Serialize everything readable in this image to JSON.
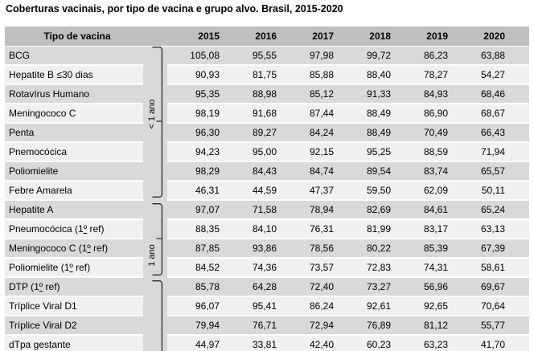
{
  "title": "Coberturas vacinais, por tipo de vacina e grupo alvo. Brasil, 2015-2020",
  "colors": {
    "header-bg": "#bfbfbf",
    "row-dark": "#d9d9d9",
    "row-light": "#f0f0f0",
    "strip-bg": "#d9d9d9",
    "bracket": "#2a2a2a"
  },
  "table": {
    "header": {
      "vaccine_col": "Tipo de vacina",
      "years": [
        "2015",
        "2016",
        "2017",
        "2018",
        "2019",
        "2020"
      ]
    },
    "groups": [
      {
        "label": "< 1 ano",
        "rows": [
          {
            "vaccine": "BCG",
            "values": [
              "105,08",
              "95,55",
              "97,98",
              "99,72",
              "86,23",
              "63,88"
            ]
          },
          {
            "vaccine": "Hepatite B ≤30 dias",
            "values": [
              "90,93",
              "81,75",
              "85,88",
              "88,40",
              "78,27",
              "54,27"
            ]
          },
          {
            "vaccine": "Rotavírus Humano",
            "values": [
              "95,35",
              "88,98",
              "85,12",
              "91,33",
              "84,93",
              "68,46"
            ]
          },
          {
            "vaccine": "Meningococo C",
            "values": [
              "98,19",
              "91,68",
              "87,44",
              "88,49",
              "86,90",
              "68,67"
            ]
          },
          {
            "vaccine": "Penta",
            "values": [
              "96,30",
              "89,27",
              "84,24",
              "88,49",
              "70,49",
              "66,43"
            ]
          },
          {
            "vaccine": "Pnemocócica",
            "values": [
              "94,23",
              "95,00",
              "92,15",
              "95,25",
              "88,59",
              "71,94"
            ]
          },
          {
            "vaccine": "Poliomielite",
            "values": [
              "98,29",
              "84,43",
              "84,74",
              "89,54",
              "83,74",
              "65,57"
            ]
          },
          {
            "vaccine": "Febre Amarela",
            "values": [
              "46,31",
              "44,59",
              "47,37",
              "59,50",
              "62,09",
              "50,11"
            ]
          }
        ]
      },
      {
        "label": "1 ano",
        "rows": [
          {
            "vaccine": "Hepatite A",
            "values": [
              "97,07",
              "71,58",
              "78,94",
              "82,69",
              "84,61",
              "65,24"
            ]
          },
          {
            "vaccine": "Pneumocócica (1º ref)",
            "values": [
              "88,35",
              "84,10",
              "76,31",
              "81,99",
              "83,17",
              "63,13"
            ]
          },
          {
            "vaccine": "Meningococo C (1º ref)",
            "values": [
              "87,85",
              "93,86",
              "78,56",
              "80,22",
              "85,39",
              "67,39"
            ]
          },
          {
            "vaccine": "Poliomielite (1º ref)",
            "values": [
              "84,52",
              "74,36",
              "73,57",
              "72,83",
              "74,31",
              "58,61"
            ]
          }
        ]
      },
      {
        "label": "",
        "rows": [
          {
            "vaccine": "DTP (1º ref)",
            "values": [
              "85,78",
              "64,28",
              "72,40",
              "73,27",
              "56,96",
              "69,67"
            ]
          },
          {
            "vaccine": "Tríplice Viral D1",
            "values": [
              "96,07",
              "95,41",
              "86,24",
              "92,61",
              "92,65",
              "70,64"
            ]
          },
          {
            "vaccine": "Tríplice Viral D2",
            "values": [
              "79,94",
              "76,71",
              "72,94",
              "76,89",
              "81,12",
              "55,77"
            ]
          },
          {
            "vaccine": "dTpa gestante",
            "values": [
              "44,97",
              "33,81",
              "42,40",
              "60,23",
              "63,23",
              "41,70"
            ]
          }
        ]
      }
    ]
  }
}
